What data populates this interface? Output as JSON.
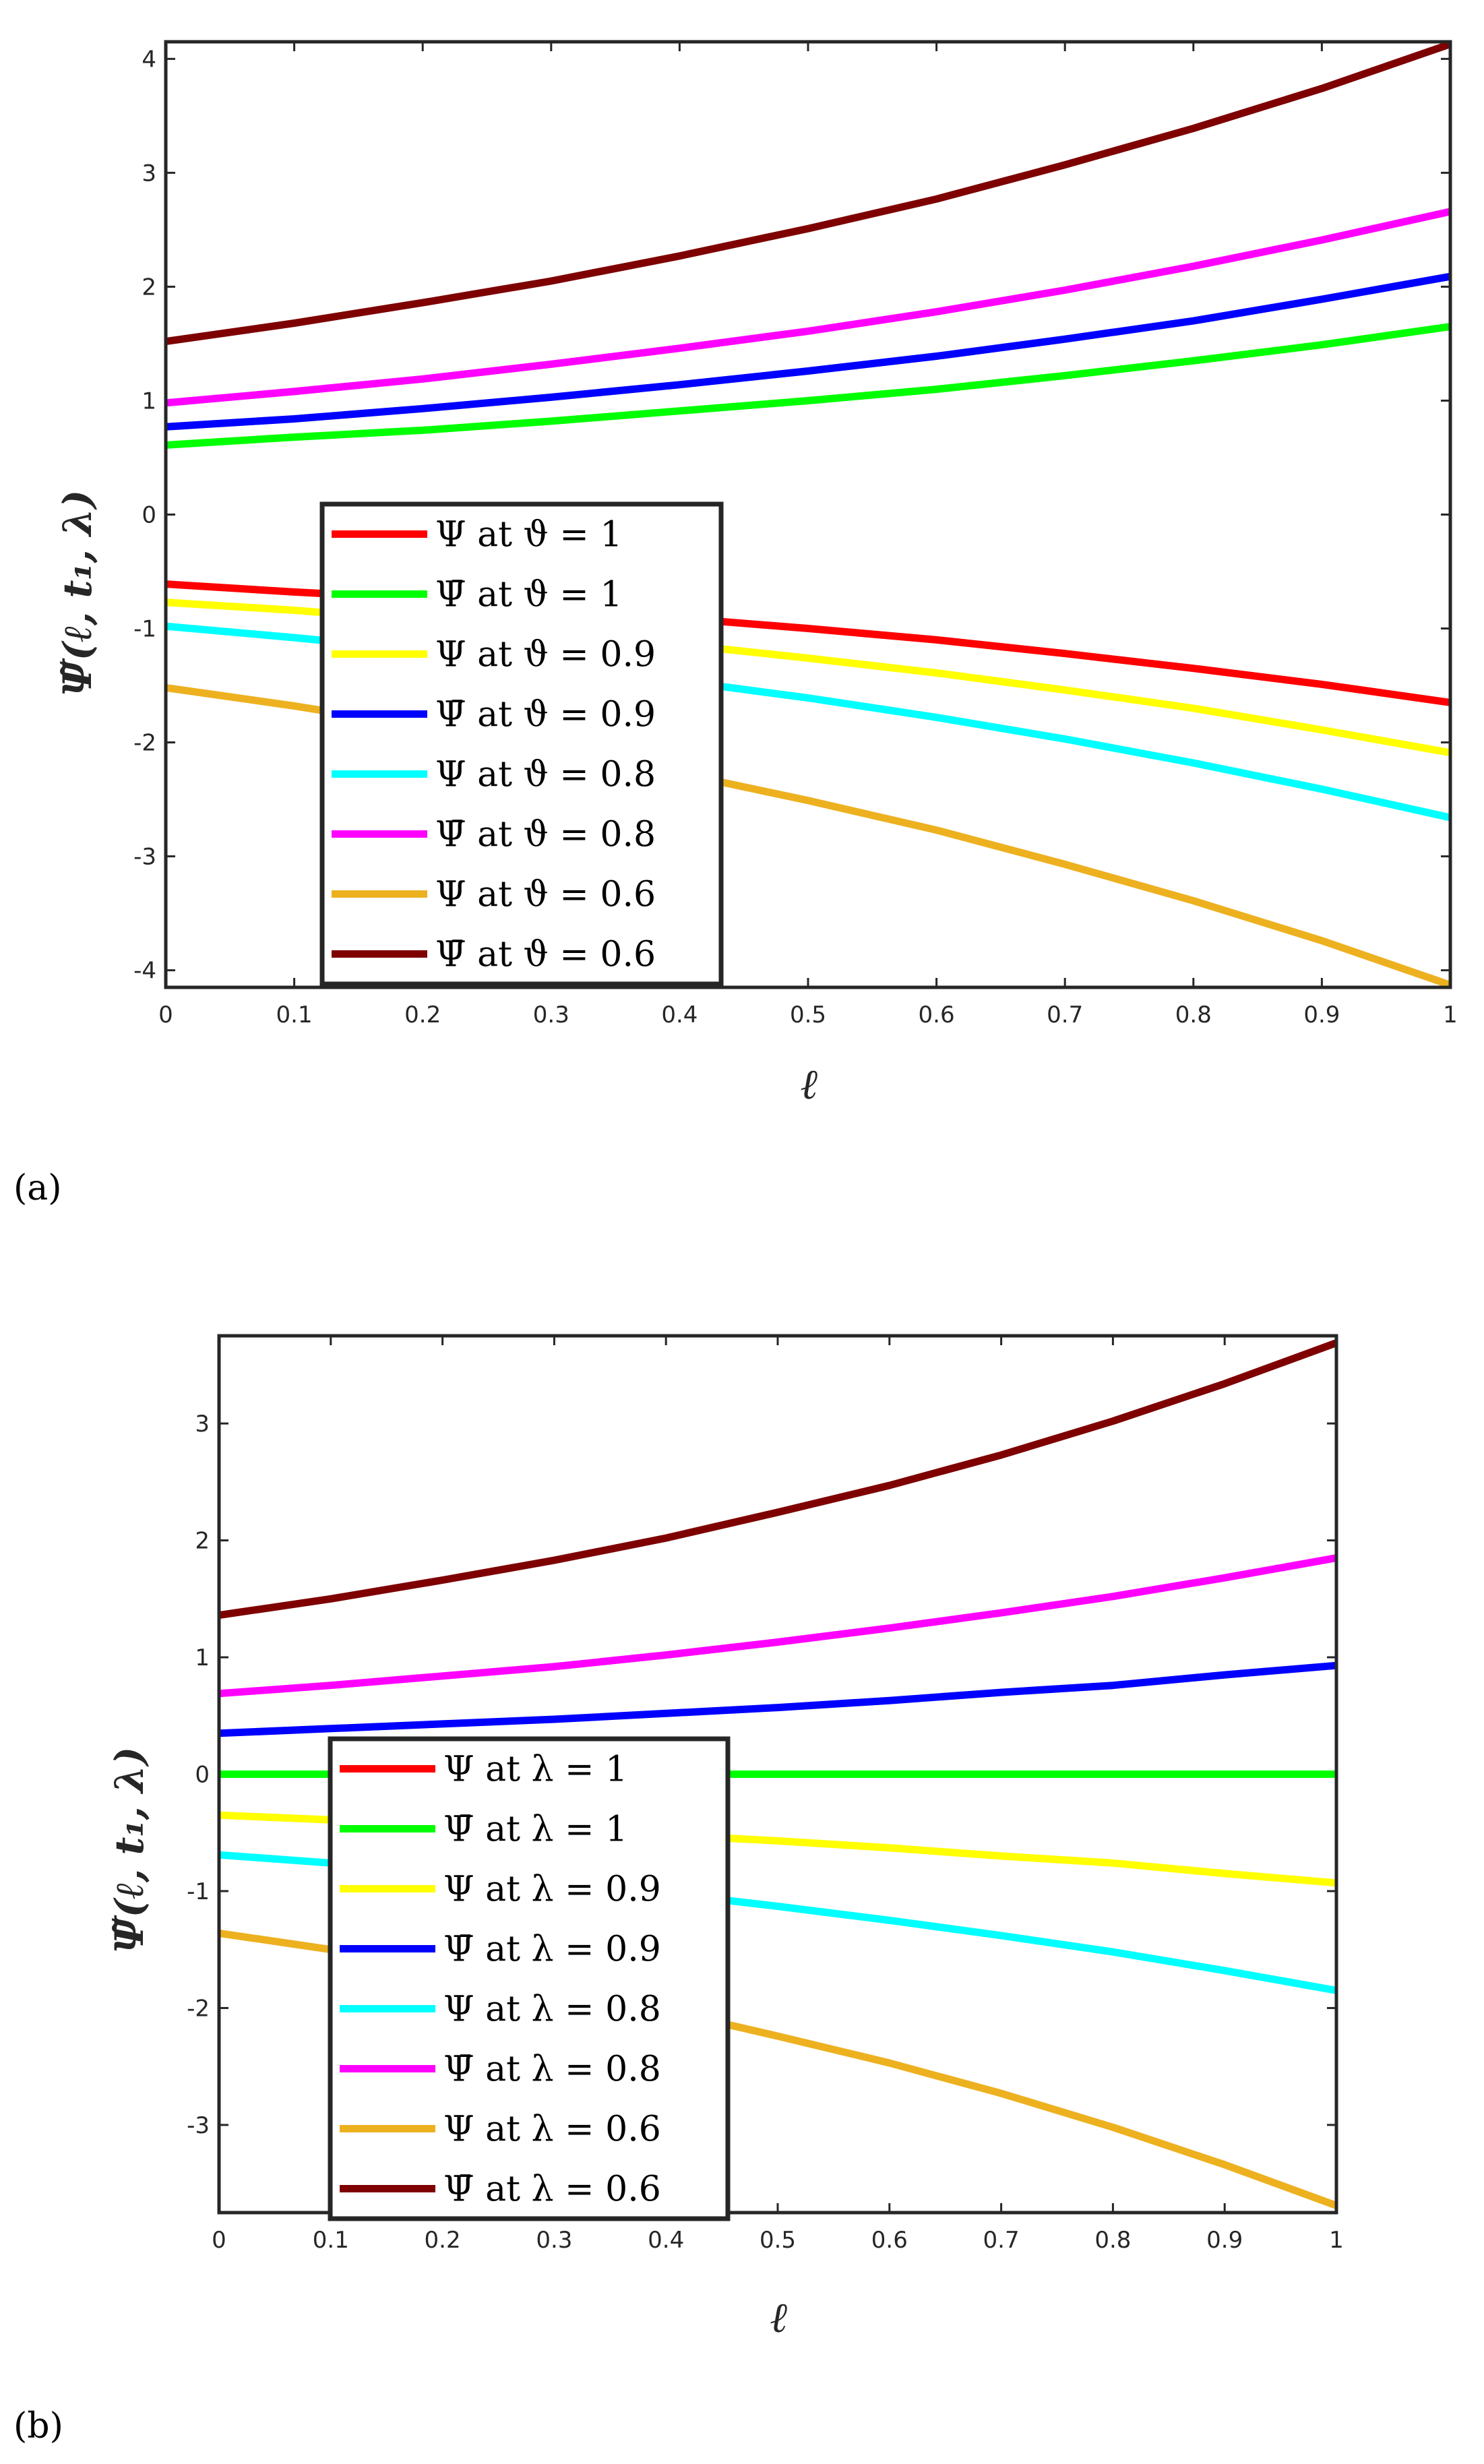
{
  "chart_data": [
    {
      "type": "line",
      "panel_label": "(a)",
      "xlabel": "ℓ",
      "ylabel": "Ψ̃(ℓ, t₁, λ)",
      "xlim": [
        0,
        1
      ],
      "ylim": [
        -4.15,
        4.15
      ],
      "xticks": [
        "0",
        "0.1",
        "0.2",
        "0.3",
        "0.4",
        "0.5",
        "0.6",
        "0.7",
        "0.8",
        "0.9",
        "1"
      ],
      "yticks": [
        "-4",
        "-3",
        "-2",
        "-1",
        "0",
        "1",
        "2",
        "3",
        "4"
      ],
      "legend_position": "center-left",
      "x": [
        0,
        0.1,
        0.2,
        0.3,
        0.4,
        0.5,
        0.6,
        0.7,
        0.8,
        0.9,
        1
      ],
      "series": [
        {
          "name": "Ψ at ϑ = 1",
          "color": "#ff0000",
          "values": [
            -0.61,
            -0.68,
            -0.74,
            -0.82,
            -0.91,
            -1.0,
            -1.1,
            -1.22,
            -1.35,
            -1.49,
            -1.65
          ]
        },
        {
          "name": "Ψ̄ at ϑ = 1",
          "color": "#00ff00",
          "values": [
            0.61,
            0.68,
            0.74,
            0.82,
            0.91,
            1.0,
            1.1,
            1.22,
            1.35,
            1.49,
            1.65
          ]
        },
        {
          "name": "Ψ at ϑ = 0.9",
          "color": "#ffff00",
          "values": [
            -0.77,
            -0.84,
            -0.93,
            -1.03,
            -1.14,
            -1.26,
            -1.39,
            -1.54,
            -1.7,
            -1.89,
            -2.09
          ]
        },
        {
          "name": "Ψ̄ at ϑ = 0.9",
          "color": "#0000ff",
          "values": [
            0.77,
            0.84,
            0.93,
            1.03,
            1.14,
            1.26,
            1.39,
            1.54,
            1.7,
            1.89,
            2.09
          ]
        },
        {
          "name": "Ψ at ϑ = 0.8",
          "color": "#00ffff",
          "values": [
            -0.98,
            -1.08,
            -1.19,
            -1.32,
            -1.46,
            -1.61,
            -1.78,
            -1.97,
            -2.18,
            -2.41,
            -2.66
          ]
        },
        {
          "name": "Ψ̄ at ϑ = 0.8",
          "color": "#ff00ff",
          "values": [
            0.98,
            1.08,
            1.19,
            1.32,
            1.46,
            1.61,
            1.78,
            1.97,
            2.18,
            2.41,
            2.66
          ]
        },
        {
          "name": "Ψ at ϑ = 0.6",
          "color": "#edb120",
          "values": [
            -1.52,
            -1.68,
            -1.86,
            -2.05,
            -2.27,
            -2.51,
            -2.77,
            -3.07,
            -3.39,
            -3.74,
            -4.13
          ]
        },
        {
          "name": "Ψ̄ at ϑ = 0.6",
          "color": "#7e0000",
          "values": [
            1.52,
            1.68,
            1.86,
            2.05,
            2.27,
            2.51,
            2.77,
            3.07,
            3.39,
            3.74,
            4.13
          ]
        }
      ]
    },
    {
      "type": "line",
      "panel_label": "(b)",
      "xlabel": "ℓ",
      "ylabel": "Ψ̃(ℓ, t₁, λ)",
      "xlim": [
        0,
        1
      ],
      "ylim": [
        -3.75,
        3.75
      ],
      "xticks": [
        "0",
        "0.1",
        "0.2",
        "0.3",
        "0.4",
        "0.5",
        "0.6",
        "0.7",
        "0.8",
        "0.9",
        "1"
      ],
      "yticks": [
        "-3",
        "-2",
        "-1",
        "0",
        "1",
        "2",
        "3"
      ],
      "legend_position": "center-left",
      "x": [
        0,
        0.1,
        0.2,
        0.3,
        0.4,
        0.5,
        0.6,
        0.7,
        0.8,
        0.9,
        1
      ],
      "series": [
        {
          "name": "Ψ at λ = 1",
          "color": "#ff0000",
          "values": [
            0,
            0,
            0,
            0,
            0,
            0,
            0,
            0,
            0,
            0,
            0
          ]
        },
        {
          "name": "Ψ̄ at λ = 1",
          "color": "#00ff00",
          "values": [
            0,
            0,
            0,
            0,
            0,
            0,
            0,
            0,
            0,
            0,
            0
          ]
        },
        {
          "name": "Ψ at λ = 0.9",
          "color": "#ffff00",
          "values": [
            -0.35,
            -0.39,
            -0.43,
            -0.47,
            -0.52,
            -0.57,
            -0.63,
            -0.7,
            -0.76,
            -0.85,
            -0.93
          ]
        },
        {
          "name": "Ψ̄ at λ = 0.9",
          "color": "#0000ff",
          "values": [
            0.35,
            0.39,
            0.43,
            0.47,
            0.52,
            0.57,
            0.63,
            0.7,
            0.76,
            0.85,
            0.93
          ]
        },
        {
          "name": "Ψ at λ = 0.8",
          "color": "#00ffff",
          "values": [
            -0.69,
            -0.76,
            -0.84,
            -0.92,
            -1.02,
            -1.13,
            -1.25,
            -1.38,
            -1.52,
            -1.68,
            -1.85
          ]
        },
        {
          "name": "Ψ̄ at λ = 0.8",
          "color": "#ff00ff",
          "values": [
            0.69,
            0.76,
            0.84,
            0.92,
            1.02,
            1.13,
            1.25,
            1.38,
            1.52,
            1.68,
            1.85
          ]
        },
        {
          "name": "Ψ at λ = 0.6",
          "color": "#edb120",
          "values": [
            -1.36,
            -1.5,
            -1.66,
            -1.83,
            -2.02,
            -2.24,
            -2.47,
            -2.73,
            -3.02,
            -3.34,
            -3.69
          ]
        },
        {
          "name": "Ψ̄ at λ = 0.6",
          "color": "#7e0000",
          "values": [
            1.36,
            1.5,
            1.66,
            1.83,
            2.02,
            2.24,
            2.47,
            2.73,
            3.02,
            3.34,
            3.69
          ]
        }
      ]
    }
  ]
}
